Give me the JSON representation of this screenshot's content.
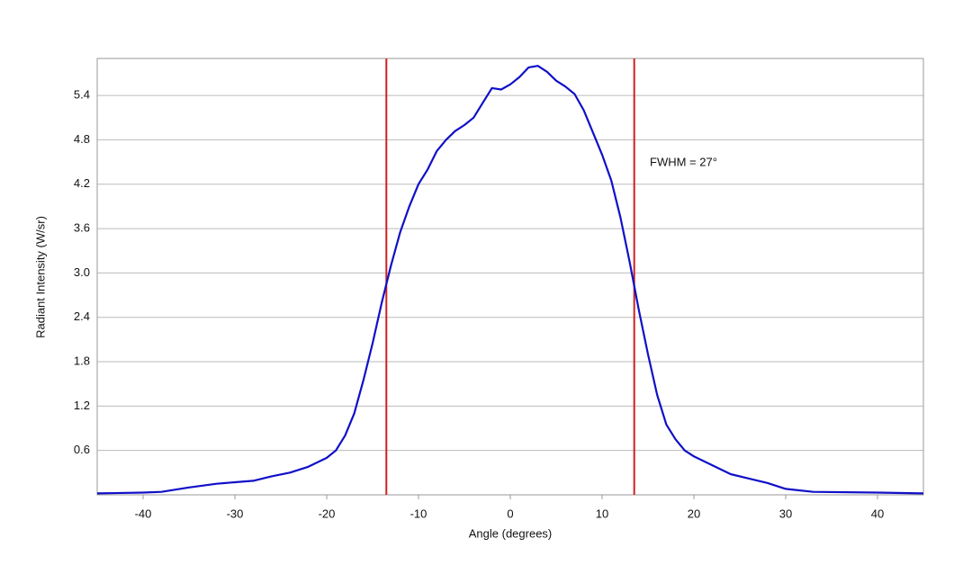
{
  "chart_data": {
    "type": "line",
    "x_label": "Angle (degrees)",
    "y_label": "Radiant Intensity (W/sr)",
    "annotation": "FWHM = 27°",
    "x": [
      -45,
      -40,
      -38,
      -35,
      -32,
      -30,
      -28,
      -26,
      -24,
      -22,
      -20,
      -19,
      -18,
      -17,
      -16,
      -15,
      -14,
      -13,
      -12,
      -11,
      -10,
      -9,
      -8,
      -7,
      -6,
      -5,
      -4,
      -3,
      -2,
      -1,
      0,
      1,
      2,
      3,
      4,
      5,
      6,
      7,
      8,
      9,
      10,
      11,
      12,
      13,
      14,
      15,
      16,
      17,
      18,
      19,
      20,
      22,
      24,
      26,
      28,
      30,
      33,
      40,
      45
    ],
    "series": [
      {
        "color": "#1010c8",
        "values": [
          0.02,
          0.03,
          0.04,
          0.1,
          0.15,
          0.17,
          0.19,
          0.25,
          0.3,
          0.38,
          0.5,
          0.6,
          0.8,
          1.1,
          1.55,
          2.05,
          2.6,
          3.1,
          3.55,
          3.9,
          4.2,
          4.4,
          4.65,
          4.8,
          4.92,
          5.0,
          5.1,
          5.3,
          5.5,
          5.48,
          5.55,
          5.65,
          5.78,
          5.8,
          5.72,
          5.6,
          5.52,
          5.42,
          5.2,
          4.9,
          4.6,
          4.25,
          3.75,
          3.15,
          2.5,
          1.9,
          1.35,
          0.95,
          0.75,
          0.6,
          0.52,
          0.4,
          0.28,
          0.22,
          0.16,
          0.08,
          0.04,
          0.03,
          0.02
        ]
      }
    ],
    "vlines": [
      -13.5,
      13.5
    ],
    "vline_color": "#d02020",
    "xlim": [
      -45,
      45
    ],
    "ylim": [
      0,
      5.9
    ],
    "xticks": [
      -40,
      -30,
      -20,
      -10,
      0,
      10,
      20,
      30,
      40
    ],
    "yticks": [
      0.6,
      1.2,
      1.8,
      2.4,
      {
        "value": 3,
        "label": "3.0"
      },
      3.6,
      4.2,
      4.8,
      5.4
    ],
    "grid": true
  }
}
